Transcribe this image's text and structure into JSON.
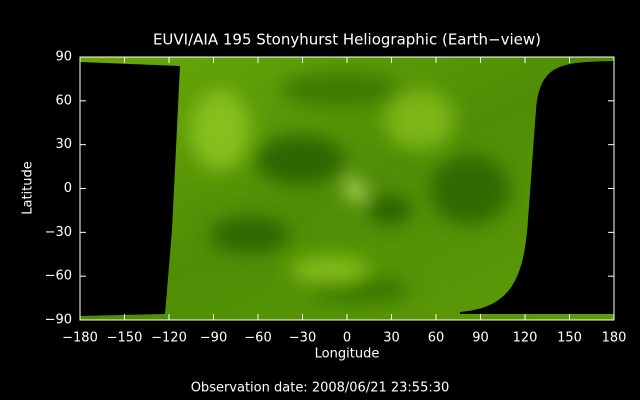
{
  "chart_data": {
    "type": "image",
    "title": "EUVI/AIA 195 Stonyhurst Heliographic (Earth−view)",
    "x_label": "Longitude",
    "y_label": "Latitude",
    "note": "Observation date: 2008/06/21 23:55:30",
    "xlim": [
      -180,
      180
    ],
    "ylim": [
      -90,
      90
    ],
    "xticks": [
      {
        "value": -180,
        "label": "−180"
      },
      {
        "value": -150,
        "label": "−150"
      },
      {
        "value": -120,
        "label": "−120"
      },
      {
        "value": -90,
        "label": "−90"
      },
      {
        "value": -60,
        "label": "−60"
      },
      {
        "value": -30,
        "label": "−30"
      },
      0,
      30,
      60,
      90,
      120,
      150,
      180
    ],
    "yticks": [
      {
        "value": -90,
        "label": "−90"
      },
      {
        "value": -60,
        "label": "−60"
      },
      {
        "value": -30,
        "label": "−30"
      },
      0,
      30,
      60,
      90
    ]
  }
}
